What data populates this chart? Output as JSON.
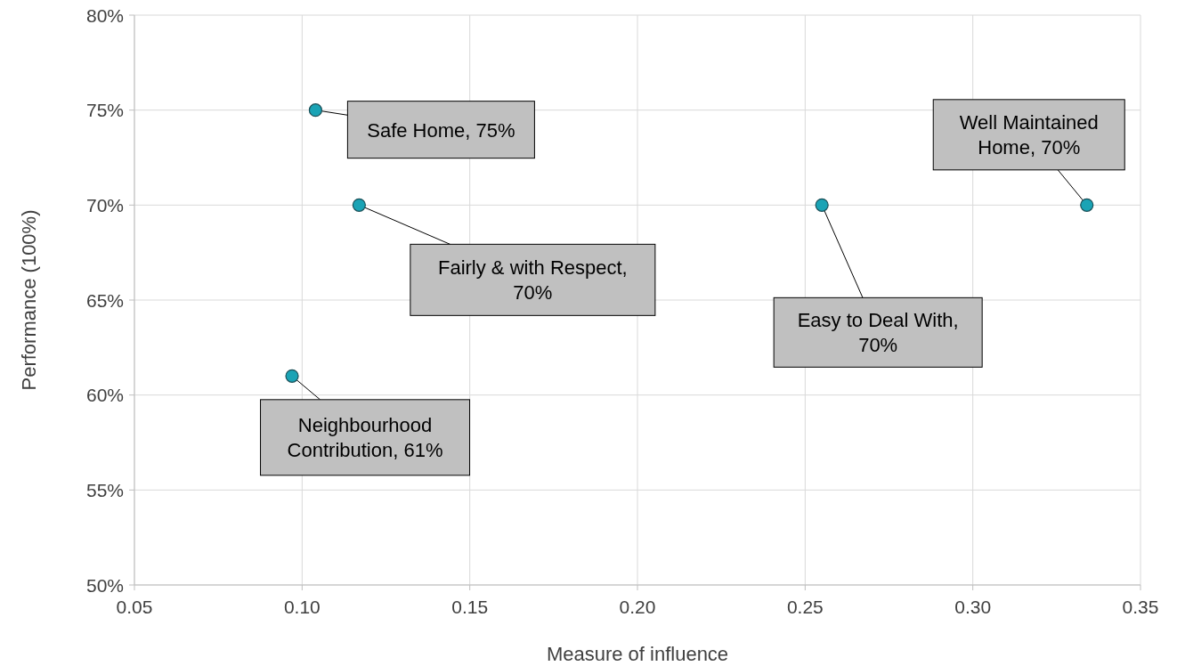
{
  "chart_data": {
    "type": "scatter",
    "xlabel": "Measure of influence",
    "ylabel": "Performance (100%)",
    "x": [
      0.104,
      0.117,
      0.097,
      0.255,
      0.334
    ],
    "series": [
      {
        "color": "#1aa3b5",
        "values": [
          75,
          70,
          61,
          70,
          70
        ]
      }
    ],
    "marker": "circle",
    "grid": true,
    "xlim": [
      0.05,
      0.35
    ],
    "xticks": [
      {
        "value": 0.05,
        "label": "0.05"
      },
      {
        "value": 0.1,
        "label": "0.10"
      },
      {
        "value": 0.15,
        "label": "0.15"
      },
      {
        "value": 0.2,
        "label": "0.20"
      },
      {
        "value": 0.25,
        "label": "0.25"
      },
      {
        "value": 0.3,
        "label": "0.30"
      },
      {
        "value": 0.35,
        "label": "0.35"
      }
    ],
    "ylim": [
      50,
      80
    ],
    "yticks": [
      {
        "value": 50,
        "label": "50%"
      },
      {
        "value": 55,
        "label": "55%"
      },
      {
        "value": 60,
        "label": "60%"
      },
      {
        "value": 65,
        "label": "65%"
      },
      {
        "value": 70,
        "label": "70%"
      },
      {
        "value": 75,
        "label": "75%"
      },
      {
        "value": 80,
        "label": "80%"
      }
    ],
    "annotations": [
      {
        "text": "Safe Home, 75%",
        "x": 0.104,
        "y": 75
      },
      {
        "text": "Fairly & with Respect, 70%",
        "x": 0.117,
        "y": 70
      },
      {
        "text": "Neighbourhood Contribution, 61%",
        "x": 0.097,
        "y": 61
      },
      {
        "text": "Easy to Deal With, 70%",
        "x": 0.255,
        "y": 70
      },
      {
        "text": "Well Maintained Home, 70%",
        "x": 0.334,
        "y": 70
      }
    ]
  }
}
